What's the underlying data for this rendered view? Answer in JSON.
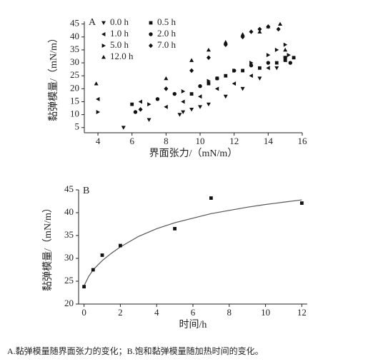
{
  "chart_data": [
    {
      "type": "scatter",
      "label": "A",
      "xlabel": "界面张力/（mN/m）",
      "ylabel": "黏弹模量/（mN/m）",
      "xlim": [
        3.2,
        16
      ],
      "xticks": [
        4,
        6,
        8,
        10,
        12,
        14,
        16
      ],
      "ylim": [
        3,
        46
      ],
      "yticks": [
        5,
        10,
        15,
        20,
        25,
        30,
        35,
        40,
        45
      ],
      "series": [
        {
          "name": "0.0 h",
          "marker": "triangle-down",
          "color": "#111111",
          "x": [
            5.5,
            7,
            8.8,
            9,
            9.5,
            10,
            10.5,
            11.5,
            12.5,
            13.5,
            14.5,
            15
          ],
          "values": [
            5,
            8,
            10,
            11,
            12,
            13,
            14,
            17,
            20,
            24,
            28,
            32
          ]
        },
        {
          "name": "0.5 h",
          "marker": "square",
          "color": "#111111",
          "x": [
            6,
            9.5,
            10.5,
            11,
            11.5,
            12.5,
            13.5,
            14.5,
            15,
            15.5
          ],
          "values": [
            14,
            18,
            22,
            24,
            25,
            27,
            28,
            30,
            31,
            32
          ]
        },
        {
          "name": "1.0 h",
          "marker": "triangle-left",
          "color": "#111111",
          "x": [
            4,
            6.5,
            8,
            9,
            10,
            11,
            12,
            13,
            14,
            15
          ],
          "values": [
            16,
            15,
            13,
            15,
            17,
            20,
            22,
            25,
            28,
            31
          ]
        },
        {
          "name": "2.0 h",
          "marker": "circle",
          "color": "#111111",
          "x": [
            6.2,
            7.5,
            8.5,
            10,
            11,
            12,
            13,
            14,
            15,
            15.3
          ],
          "values": [
            11,
            16,
            18,
            21,
            24,
            27,
            29,
            30,
            32,
            30
          ]
        },
        {
          "name": "5.0 h",
          "marker": "triangle-right",
          "color": "#111111",
          "x": [
            4,
            7,
            9,
            10.5,
            12,
            13,
            14,
            14.5,
            15,
            15.2
          ],
          "values": [
            11,
            14,
            19,
            23,
            27,
            30,
            33,
            35,
            37,
            33
          ]
        },
        {
          "name": "7.0 h",
          "marker": "diamond",
          "color": "#111111",
          "x": [
            6.5,
            8,
            9.5,
            10.5,
            11.5,
            12.5,
            13,
            13.5,
            14,
            14.6
          ],
          "values": [
            12,
            20,
            27,
            32,
            37,
            40,
            42,
            43,
            44,
            43
          ]
        },
        {
          "name": "12.0 h",
          "marker": "triangle-up",
          "color": "#111111",
          "x": [
            3.9,
            8,
            9.5,
            10.5,
            11.5,
            12.5,
            13.5,
            14,
            14.7,
            15
          ],
          "values": [
            22,
            24,
            31,
            35,
            38,
            41,
            42,
            44,
            45,
            35
          ]
        }
      ]
    },
    {
      "type": "scatter",
      "label": "B",
      "xlabel": "时间/h",
      "ylabel": "黏弹模量/（mN/m）",
      "xlim": [
        -0.3,
        12.3
      ],
      "xticks": [
        0,
        2,
        4,
        6,
        8,
        10,
        12
      ],
      "ylim": [
        20,
        45
      ],
      "yticks": [
        20,
        25,
        30,
        35,
        40,
        45
      ],
      "series": [
        {
          "marker": "square",
          "color": "#111111",
          "x": [
            0,
            0.5,
            1,
            2,
            5,
            7,
            12
          ],
          "values": [
            23.8,
            27.5,
            30.7,
            32.8,
            36.5,
            43.2,
            42.1
          ]
        }
      ],
      "fit": {
        "color": "#555555",
        "x": [
          0,
          0.25,
          0.5,
          1,
          1.5,
          2,
          3,
          4,
          5,
          6,
          7,
          8,
          9,
          10,
          11,
          12
        ],
        "values": [
          24,
          26,
          27.5,
          29.5,
          31.1,
          32.5,
          34.8,
          36.5,
          37.8,
          38.8,
          39.8,
          40.5,
          41.2,
          41.8,
          42.3,
          42.8
        ]
      }
    }
  ],
  "caption": "A.黏弹模量随界面张力的变化；B.饱和黏弹模量随加热时间的变化。"
}
